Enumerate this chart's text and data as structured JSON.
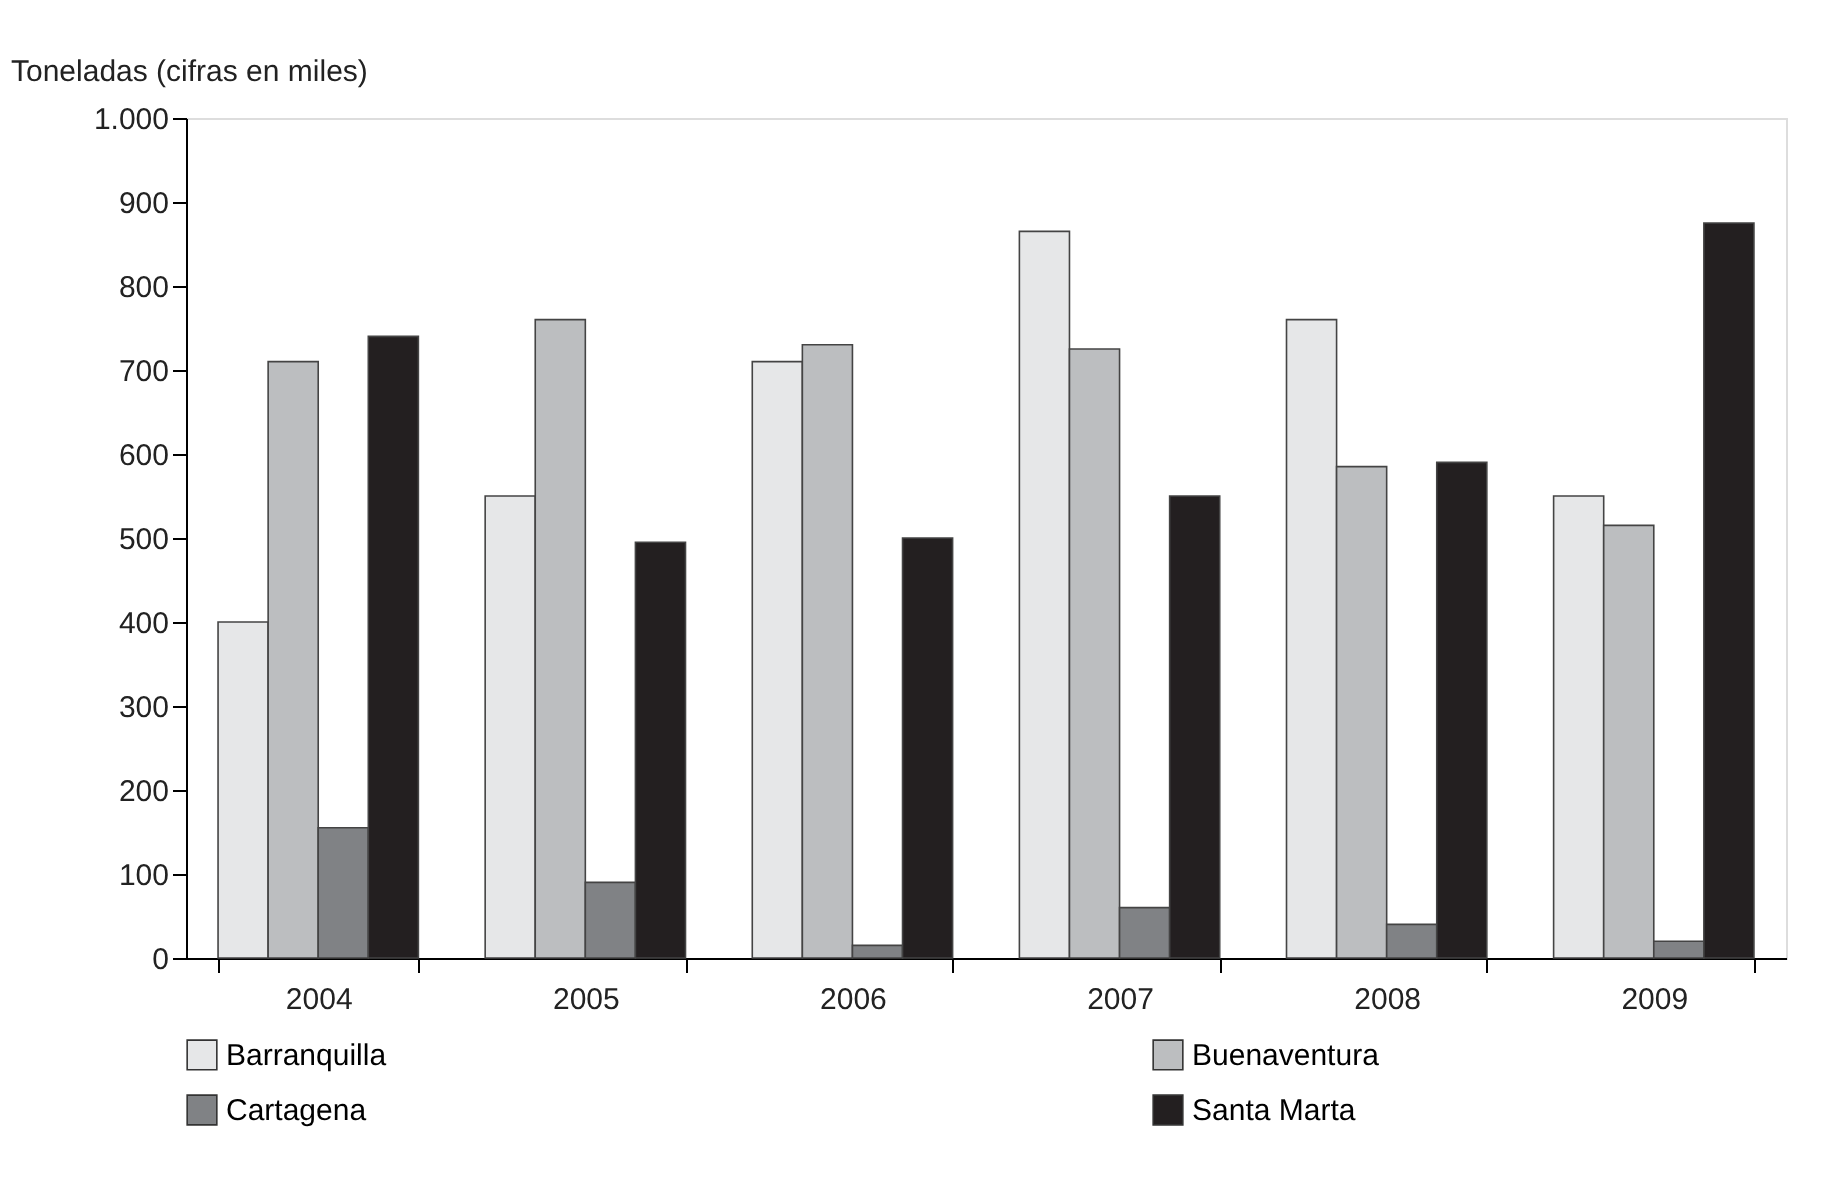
{
  "chart_data": {
    "type": "bar",
    "ylabel": "Toneladas (cifras en miles)",
    "categories": [
      "2004",
      "2005",
      "2006",
      "2007",
      "2008",
      "2009"
    ],
    "series": [
      {
        "name": "Barranquilla",
        "color": "#e6e7e8",
        "values": [
          400,
          550,
          710,
          865,
          760,
          550
        ]
      },
      {
        "name": "Buenaventura",
        "color": "#bcbec0",
        "values": [
          710,
          760,
          730,
          725,
          585,
          515
        ]
      },
      {
        "name": "Cartagena",
        "color": "#808285",
        "values": [
          155,
          90,
          15,
          60,
          40,
          20
        ]
      },
      {
        "name": "Santa Marta",
        "color": "#231f20",
        "values": [
          740,
          495,
          500,
          550,
          590,
          875
        ]
      }
    ],
    "ylim": [
      0,
      1000
    ],
    "yticks": [
      0,
      100,
      200,
      300,
      400,
      500,
      600,
      700,
      800,
      900,
      {
        "value": 1000,
        "label": "1.000"
      }
    ],
    "grid": false,
    "legend": "bottom"
  }
}
